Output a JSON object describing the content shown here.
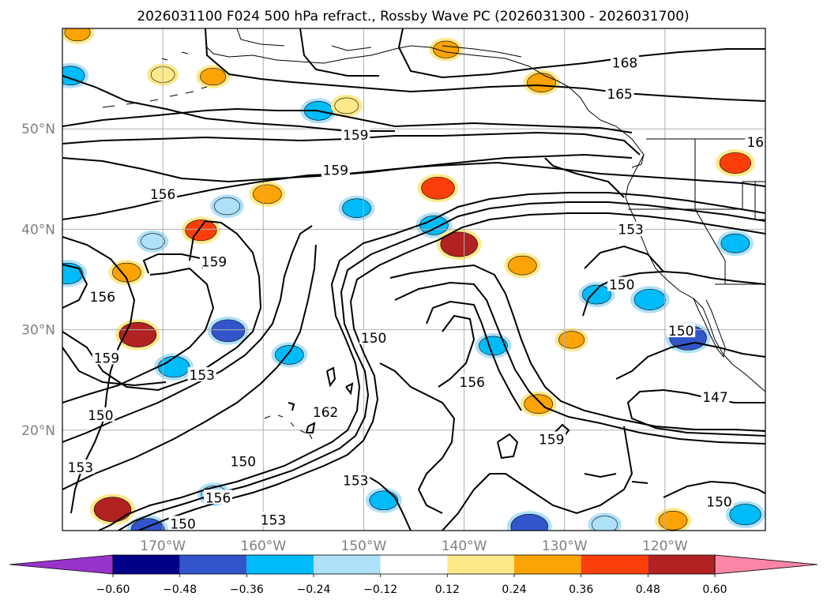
{
  "chart_data": {
    "type": "contour-map",
    "title": "2026031100 F024 500 hPa refract., Rossby Wave PC (2026031300 - 2026031700)",
    "lon_range": [
      -180,
      -110
    ],
    "lat_range": [
      10,
      60
    ],
    "x_ticks": [
      "170°W",
      "160°W",
      "150°W",
      "140°W",
      "130°W",
      "120°W"
    ],
    "x_tick_values": [
      -170,
      -160,
      -150,
      -140,
      -130,
      -120
    ],
    "y_ticks": [
      "50°N",
      "40°N",
      "30°N",
      "20°N"
    ],
    "y_tick_values": [
      50,
      40,
      30,
      20
    ],
    "grid": true,
    "colorbar": {
      "location": "bottom",
      "extend": "both",
      "tick_labels": [
        "−0.60",
        "−0.48",
        "−0.36",
        "−0.24",
        "−0.12",
        "0.12",
        "0.24",
        "0.36",
        "0.48",
        "0.60"
      ],
      "levels": [
        -0.6,
        -0.48,
        -0.36,
        -0.24,
        -0.12,
        0.12,
        0.24,
        0.36,
        0.48,
        0.6
      ],
      "colors": [
        "#9933cc",
        "#000088",
        "#3355cc",
        "#00bbf9",
        "#aee0f9",
        "#ffffff",
        "#fde98a",
        "#fca305",
        "#fc3f0a",
        "#b22222",
        "#fd86a8"
      ]
    },
    "contour_levels": [
      147,
      150,
      153,
      156,
      159,
      162,
      165,
      168
    ],
    "contour_labels": [
      {
        "value": "168",
        "lon": -124,
        "lat": 56.5
      },
      {
        "value": "165",
        "lon": -124.5,
        "lat": 53.4
      },
      {
        "value": "16",
        "lon": -111,
        "lat": 48.6
      },
      {
        "value": "159",
        "lon": -150.8,
        "lat": 49.3
      },
      {
        "value": "159",
        "lon": -152.8,
        "lat": 45.8
      },
      {
        "value": "156",
        "lon": -170,
        "lat": 43.4
      },
      {
        "value": "153",
        "lon": -123.4,
        "lat": 39.9
      },
      {
        "value": "159",
        "lon": -164.9,
        "lat": 36.7
      },
      {
        "value": "156",
        "lon": -176,
        "lat": 33.2
      },
      {
        "value": "150",
        "lon": -124.3,
        "lat": 34.4
      },
      {
        "value": "150",
        "lon": -118.4,
        "lat": 29.8
      },
      {
        "value": "150",
        "lon": -149,
        "lat": 29.1
      },
      {
        "value": "159",
        "lon": -175.6,
        "lat": 27.1
      },
      {
        "value": "153",
        "lon": -166.1,
        "lat": 25.4
      },
      {
        "value": "156",
        "lon": -139.2,
        "lat": 24.7
      },
      {
        "value": "147",
        "lon": -115,
        "lat": 23.2
      },
      {
        "value": "150",
        "lon": -176.2,
        "lat": 21.4
      },
      {
        "value": "162",
        "lon": -153.8,
        "lat": 21.7
      },
      {
        "value": "159",
        "lon": -131.3,
        "lat": 19.0
      },
      {
        "value": "153",
        "lon": -178.2,
        "lat": 16.2
      },
      {
        "value": "150",
        "lon": -162,
        "lat": 16.8
      },
      {
        "value": "153",
        "lon": -150.8,
        "lat": 14.9
      },
      {
        "value": "156",
        "lon": -164.5,
        "lat": 13.2
      },
      {
        "value": "150",
        "lon": -114.6,
        "lat": 12.8
      },
      {
        "value": "153",
        "lon": -159,
        "lat": 11.0
      },
      {
        "value": "150",
        "lon": -168,
        "lat": 10.6
      }
    ],
    "shaded_anomalies": [
      {
        "lon": -178.5,
        "lat": 59.6,
        "value": 0.24
      },
      {
        "lon": -179.2,
        "lat": 55.3,
        "value": -0.3
      },
      {
        "lon": -170,
        "lat": 55.4,
        "value": 0.2
      },
      {
        "lon": -165,
        "lat": 55.2,
        "value": 0.24
      },
      {
        "lon": -154.5,
        "lat": 51.8,
        "value": -0.3
      },
      {
        "lon": -151.7,
        "lat": 52.3,
        "value": 0.2
      },
      {
        "lon": -141.8,
        "lat": 57.9,
        "value": 0.24
      },
      {
        "lon": -132.3,
        "lat": 54.6,
        "value": 0.3
      },
      {
        "lon": -113,
        "lat": 46.6,
        "value": 0.36
      },
      {
        "lon": -142.6,
        "lat": 44.1,
        "value": 0.4
      },
      {
        "lon": -143,
        "lat": 40.4,
        "value": -0.3
      },
      {
        "lon": -140.5,
        "lat": 38.5,
        "value": 0.48
      },
      {
        "lon": -166.2,
        "lat": 39.9,
        "value": 0.36
      },
      {
        "lon": -163.6,
        "lat": 42.3,
        "value": -0.24
      },
      {
        "lon": -159.6,
        "lat": 43.5,
        "value": 0.3
      },
      {
        "lon": -150.7,
        "lat": 42.1,
        "value": -0.3
      },
      {
        "lon": -171,
        "lat": 38.8,
        "value": -0.2
      },
      {
        "lon": -179.5,
        "lat": 35.6,
        "value": -0.36
      },
      {
        "lon": -173.6,
        "lat": 35.7,
        "value": 0.3
      },
      {
        "lon": -172.5,
        "lat": 29.5,
        "value": 0.48
      },
      {
        "lon": -163.5,
        "lat": 29.9,
        "value": -0.4
      },
      {
        "lon": -168.9,
        "lat": 26.3,
        "value": -0.36
      },
      {
        "lon": -157.4,
        "lat": 27.5,
        "value": -0.3
      },
      {
        "lon": -134.2,
        "lat": 36.4,
        "value": 0.3
      },
      {
        "lon": -126.8,
        "lat": 33.5,
        "value": -0.3
      },
      {
        "lon": -121.5,
        "lat": 33.0,
        "value": -0.36
      },
      {
        "lon": -117.7,
        "lat": 29.2,
        "value": -0.48
      },
      {
        "lon": -137.1,
        "lat": 28.4,
        "value": -0.3
      },
      {
        "lon": -129.3,
        "lat": 29.0,
        "value": 0.24
      },
      {
        "lon": -132.6,
        "lat": 22.6,
        "value": 0.3
      },
      {
        "lon": -113,
        "lat": 38.6,
        "value": -0.3
      },
      {
        "lon": -175,
        "lat": 12.1,
        "value": 0.48
      },
      {
        "lon": -171.5,
        "lat": 10.1,
        "value": -0.4
      },
      {
        "lon": -133.5,
        "lat": 10.4,
        "value": -0.48
      },
      {
        "lon": -126,
        "lat": 10.6,
        "value": -0.24
      },
      {
        "lon": -119.2,
        "lat": 11.0,
        "value": 0.3
      },
      {
        "lon": -112,
        "lat": 11.6,
        "value": -0.36
      },
      {
        "lon": -148,
        "lat": 13.0,
        "value": -0.3
      },
      {
        "lon": -164.9,
        "lat": 13.6,
        "value": -0.24
      }
    ]
  }
}
